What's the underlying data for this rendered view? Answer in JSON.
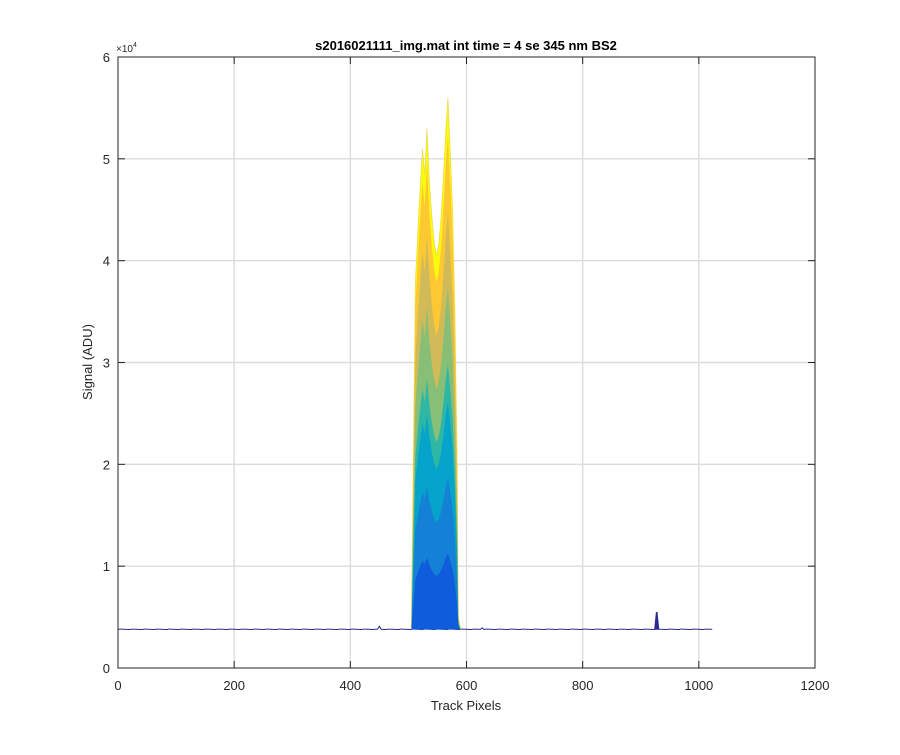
{
  "chart_data": {
    "type": "area",
    "title": "s2016021111_img.mat int time = 4 se  345 nm BS2",
    "xlabel": "Track Pixels",
    "ylabel": "Signal (ADU)",
    "y_exponent_label": "×10",
    "y_exponent_power": "4",
    "xlim": [
      0,
      1200
    ],
    "ylim": [
      0,
      60000
    ],
    "x_ticks": [
      0,
      200,
      400,
      600,
      800,
      1000,
      1200
    ],
    "x_tick_labels": [
      "0",
      "200",
      "400",
      "600",
      "800",
      "1000",
      "1200"
    ],
    "y_ticks": [
      0,
      10000,
      20000,
      30000,
      40000,
      50000,
      60000
    ],
    "y_tick_labels": [
      "0",
      "1",
      "2",
      "3",
      "4",
      "5",
      "6"
    ],
    "grid": true,
    "colormap": [
      "#352a87",
      "#0f5cdd",
      "#1481d6",
      "#06a4ca",
      "#2eb7a4",
      "#87bf77",
      "#d1bb59",
      "#fec832",
      "#f9fb0e"
    ],
    "baseline_color": "#2b2b8f",
    "baseline": {
      "x_start": 0,
      "x_end": 1023,
      "value": 3800,
      "small_spikes": [
        {
          "x": 450,
          "y": 4100
        },
        {
          "x": 628,
          "y": 3950
        }
      ],
      "spike": {
        "x": 928,
        "y": 5500
      }
    },
    "main_peak_envelope": {
      "x": [
        505,
        512,
        518,
        524,
        528,
        532,
        536,
        540,
        544,
        548,
        552,
        556,
        560,
        564,
        568,
        572,
        576,
        580,
        584,
        586,
        590
      ],
      "y": [
        3800,
        38000,
        45000,
        51000,
        48500,
        53000,
        48000,
        44500,
        42000,
        40500,
        41500,
        44000,
        48000,
        52500,
        56000,
        51000,
        45000,
        35000,
        20000,
        5000,
        3800
      ]
    }
  }
}
